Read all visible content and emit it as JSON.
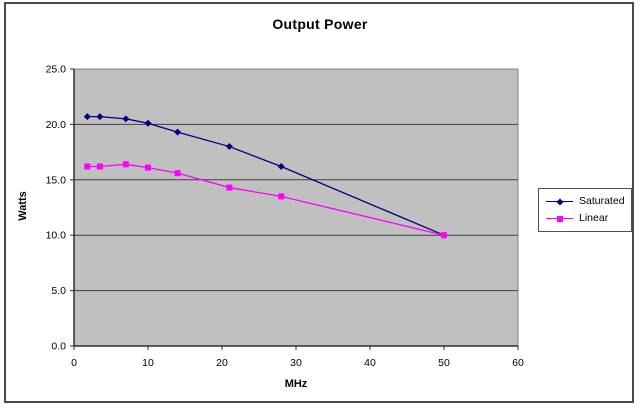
{
  "chart_data": {
    "type": "line",
    "title": "Output Power",
    "xlabel": "MHz",
    "ylabel": "Watts",
    "xlim": [
      0,
      60
    ],
    "ylim": [
      0,
      25
    ],
    "grid": "horizontal-major",
    "legend_position": "right",
    "x": [
      1.8,
      3.5,
      7,
      10,
      14,
      21,
      28,
      50
    ],
    "series": [
      {
        "name": "Saturated",
        "marker": "diamond",
        "color": "#000080",
        "values": [
          20.7,
          20.7,
          20.5,
          20.1,
          19.3,
          18.0,
          16.2,
          10.0
        ]
      },
      {
        "name": "Linear",
        "marker": "square",
        "color": "#FF00FF",
        "values": [
          16.2,
          16.2,
          16.4,
          16.1,
          15.6,
          14.3,
          13.5,
          10.0
        ]
      }
    ],
    "x_ticks": [
      {
        "value": 0,
        "label": "0"
      },
      {
        "value": 10,
        "label": "10"
      },
      {
        "value": 20,
        "label": "20"
      },
      {
        "value": 30,
        "label": "30"
      },
      {
        "value": 40,
        "label": "40"
      },
      {
        "value": 50,
        "label": "50"
      },
      {
        "value": 60,
        "label": "60"
      }
    ],
    "y_ticks": [
      {
        "value": 0,
        "label": "0.0"
      },
      {
        "value": 5,
        "label": "5.0"
      },
      {
        "value": 10,
        "label": "10.0"
      },
      {
        "value": 15,
        "label": "15.0"
      },
      {
        "value": 20,
        "label": "20.0"
      },
      {
        "value": 25,
        "label": "25.0"
      }
    ],
    "colors": {
      "plot_bg": "#c0c0c0",
      "plot_border": "#808080",
      "gridline": "#3f3f3f",
      "axis": "#2e2e2e",
      "frame_border": "#494949",
      "legend_border": "#4f4f4f",
      "text": "#000000"
    }
  }
}
